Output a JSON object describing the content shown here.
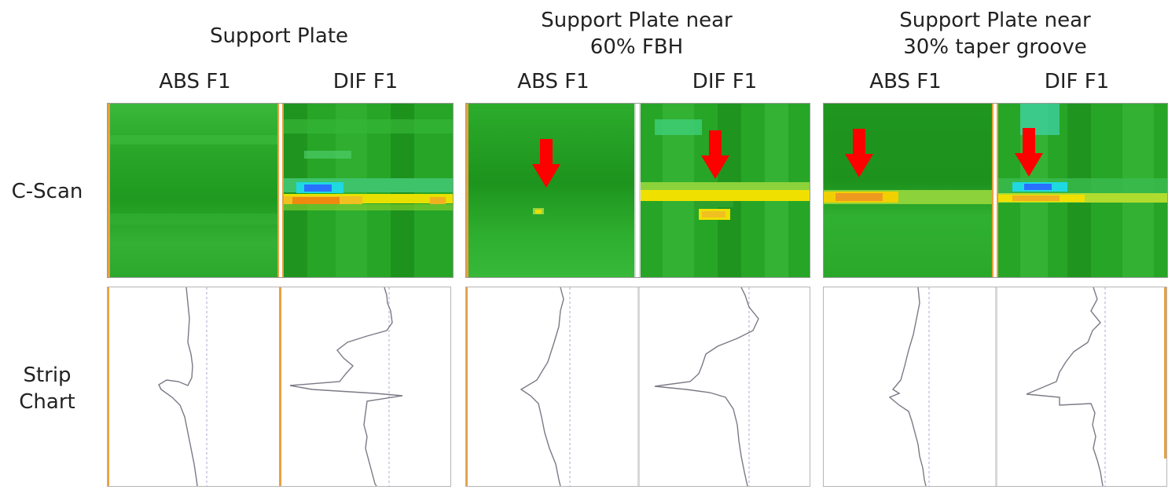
{
  "row_labels": {
    "cscan": "C-Scan",
    "strip_line1": "Strip",
    "strip_line2": "Chart"
  },
  "panels": [
    {
      "title_line1": "Support Plate",
      "title_line2": "",
      "channel_left": "ABS F1",
      "channel_right": "DIF F1",
      "abs_arrow": false,
      "dif_arrow": false
    },
    {
      "title_line1": "Support Plate near",
      "title_line2": "60% FBH",
      "channel_left": "ABS F1",
      "channel_right": "DIF F1",
      "abs_arrow": true,
      "dif_arrow": true
    },
    {
      "title_line1": "Support Plate near",
      "title_line2": "30% taper groove",
      "channel_left": "ABS F1",
      "channel_right": "DIF F1",
      "abs_arrow": true,
      "dif_arrow": true
    }
  ],
  "colors": {
    "green": "#2fa52f",
    "dark_green": "#1e8f1e",
    "yellow": "#f0e000",
    "orange": "#ee8a10",
    "cyan": "#20d8e0",
    "blue": "#2a70ff",
    "arrow_red": "#ff0000",
    "separator": "#e8a040",
    "trace": "#7a7a86"
  }
}
